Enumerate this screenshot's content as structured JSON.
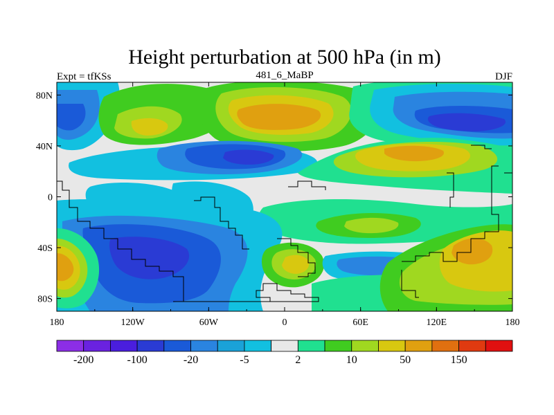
{
  "chart_data": {
    "type": "heatmap",
    "title": "Height perturbation at 500 hPa (in m)",
    "left_label": "Expt = tfKSs",
    "center_label": "481_6_MaBP",
    "right_label": "DJF",
    "x_ticks": [
      "180",
      "120W",
      "60W",
      "0",
      "60E",
      "120E",
      "180"
    ],
    "x_tick_values": [
      -180,
      -120,
      -60,
      0,
      60,
      120,
      180
    ],
    "y_ticks": [
      "80N",
      "40N",
      "0",
      "40S",
      "80S"
    ],
    "y_tick_values": [
      80,
      40,
      0,
      -40,
      -80
    ],
    "xlim": [
      -180,
      180
    ],
    "ylim": [
      -90,
      90
    ],
    "colorbar": {
      "colors": [
        "#8c2ee6",
        "#6a22e0",
        "#4a1ede",
        "#2a3bd4",
        "#1a5ad8",
        "#2a84e0",
        "#1aa2d8",
        "#12c0e0",
        "#e8e8e8",
        "#20e090",
        "#40cc20",
        "#a0d820",
        "#d8c810",
        "#e0a010",
        "#e07010",
        "#e03a10",
        "#e01010"
      ],
      "tick_labels": [
        "-200",
        "-100",
        "-20",
        "-5",
        "2",
        "10",
        "50",
        "150"
      ],
      "tick_bounds": [
        1,
        3,
        5,
        7,
        9,
        11,
        13,
        15
      ]
    },
    "features": [
      {
        "label": "north-pacific-blue-trough",
        "lon": -170,
        "lat": 60,
        "value": -30
      },
      {
        "label": "north-america-green-ridge",
        "lon": -115,
        "lat": 58,
        "value": 20
      },
      {
        "label": "north-atlantic-orange-ridge",
        "lon": -20,
        "lat": 62,
        "value": 60
      },
      {
        "label": "siberia-blue-trough",
        "lon": 150,
        "lat": 60,
        "value": -30
      },
      {
        "label": "midlat-atlantic-low",
        "lon": -30,
        "lat": 32,
        "value": -40
      },
      {
        "label": "asia-subtropic-ridge",
        "lon": 80,
        "lat": 36,
        "value": 40
      },
      {
        "label": "south-pacific-blue-trough",
        "lon": -95,
        "lat": -55,
        "value": -30
      },
      {
        "label": "south-pacific-yellow-high",
        "lon": -170,
        "lat": -48,
        "value": 40
      },
      {
        "label": "south-indian-yellow-high",
        "lon": 150,
        "lat": -40,
        "value": 40
      },
      {
        "label": "south-atlantic-blue-trough",
        "lon": 60,
        "lat": -52,
        "value": -10
      }
    ]
  }
}
